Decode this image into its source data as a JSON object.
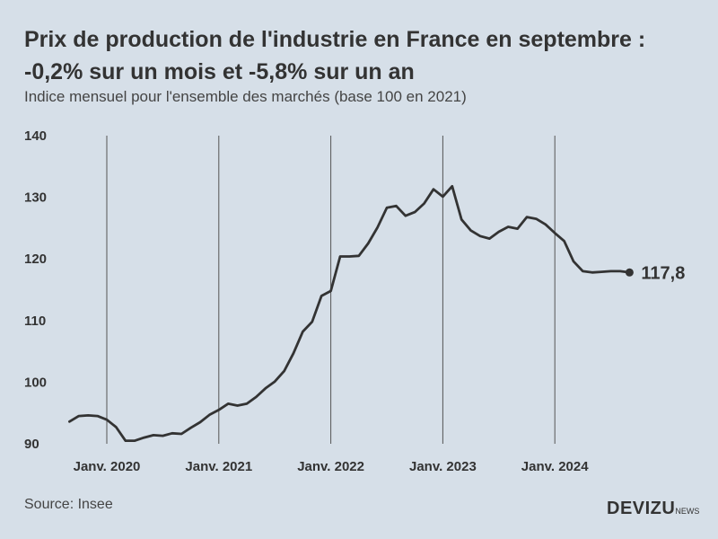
{
  "header": {
    "title_line1": "Prix de production de l'industrie en France en septembre :",
    "title_line2": "-0,2% sur un mois et -5,8% sur un an",
    "subtitle": "Indice mensuel pour l'ensemble des marchés (base 100 en 2021)"
  },
  "footer": {
    "source": "Source: Insee",
    "brand": "DEVIZU",
    "brand_suffix": "NEWS"
  },
  "colors": {
    "background": "#d6dfe8",
    "line": "#333333",
    "text": "#333333"
  },
  "chart_data": {
    "type": "line",
    "title": "Prix de production de l'industrie en France en septembre : -0,2% sur un mois et -5,8% sur un an",
    "subtitle": "Indice mensuel pour l'ensemble des marchés (base 100 en 2021)",
    "xlabel": "",
    "ylabel": "",
    "ylim": [
      90,
      140
    ],
    "y_ticks": [
      90,
      100,
      110,
      120,
      130,
      140
    ],
    "x_ticks": [
      {
        "date": "2020-01",
        "label": "Janv. 2020"
      },
      {
        "date": "2021-01",
        "label": "Janv. 2021"
      },
      {
        "date": "2022-01",
        "label": "Janv. 2022"
      },
      {
        "date": "2023-01",
        "label": "Janv. 2023"
      },
      {
        "date": "2024-01",
        "label": "Janv. 2024"
      }
    ],
    "vertical_gridlines": true,
    "last_value_label": "117,8",
    "x": [
      "2019-09",
      "2019-10",
      "2019-11",
      "2019-12",
      "2020-01",
      "2020-02",
      "2020-03",
      "2020-04",
      "2020-05",
      "2020-06",
      "2020-07",
      "2020-08",
      "2020-09",
      "2020-10",
      "2020-11",
      "2020-12",
      "2021-01",
      "2021-02",
      "2021-03",
      "2021-04",
      "2021-05",
      "2021-06",
      "2021-07",
      "2021-08",
      "2021-09",
      "2021-10",
      "2021-11",
      "2021-12",
      "2022-01",
      "2022-02",
      "2022-03",
      "2022-04",
      "2022-05",
      "2022-06",
      "2022-07",
      "2022-08",
      "2022-09",
      "2022-10",
      "2022-11",
      "2022-12",
      "2023-01",
      "2023-02",
      "2023-03",
      "2023-04",
      "2023-05",
      "2023-06",
      "2023-07",
      "2023-08",
      "2023-09",
      "2023-10",
      "2023-11",
      "2023-12",
      "2024-01",
      "2024-02",
      "2024-03",
      "2024-04",
      "2024-05",
      "2024-06",
      "2024-07",
      "2024-08",
      "2024-09"
    ],
    "values": [
      93.6,
      94.5,
      94.6,
      94.5,
      93.9,
      92.7,
      90.5,
      90.5,
      91.0,
      91.4,
      91.3,
      91.7,
      91.6,
      92.6,
      93.5,
      94.7,
      95.5,
      96.5,
      96.2,
      96.5,
      97.6,
      99.0,
      100.1,
      101.8,
      104.7,
      108.2,
      109.8,
      114.0,
      114.8,
      120.4,
      120.4,
      120.5,
      122.5,
      125.1,
      128.3,
      128.6,
      127.0,
      127.6,
      129.0,
      131.3,
      130.1,
      131.8,
      126.4,
      124.6,
      123.7,
      123.3,
      124.4,
      125.2,
      124.9,
      126.8,
      126.5,
      125.6,
      124.2,
      122.9,
      119.6,
      118.0,
      117.8,
      117.9,
      118.0,
      118.0,
      117.8
    ]
  }
}
